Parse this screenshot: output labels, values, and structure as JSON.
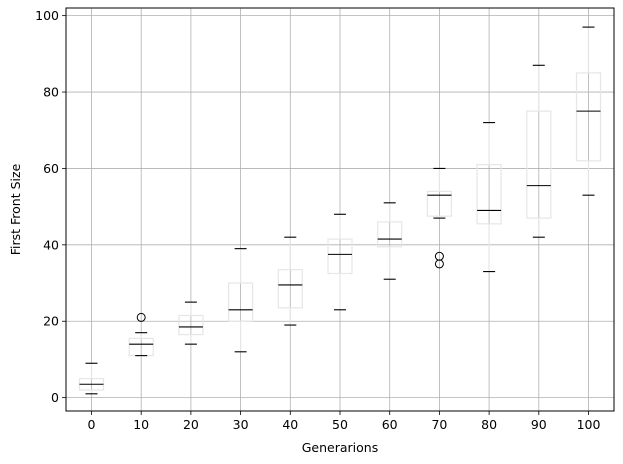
{
  "chart_data": {
    "type": "box",
    "xlabel": "Generarions",
    "ylabel": "First Front Size",
    "categories": [
      "0",
      "10",
      "20",
      "30",
      "40",
      "50",
      "60",
      "70",
      "80",
      "90",
      "100"
    ],
    "ylim": [
      -3.5,
      102
    ],
    "yticks": [
      0,
      20,
      40,
      60,
      80,
      100
    ],
    "grid": true,
    "boxes": [
      {
        "whisker_low": 1,
        "q1": 2,
        "median": 3.5,
        "q3": 5,
        "whisker_high": 9,
        "outliers": []
      },
      {
        "whisker_low": 11,
        "q1": 11,
        "median": 14,
        "q3": 15.5,
        "whisker_high": 17,
        "outliers": [
          21
        ]
      },
      {
        "whisker_low": 14,
        "q1": 16.5,
        "median": 18.5,
        "q3": 21.5,
        "whisker_high": 25,
        "outliers": []
      },
      {
        "whisker_low": 12,
        "q1": 20,
        "median": 23,
        "q3": 30,
        "whisker_high": 39,
        "outliers": []
      },
      {
        "whisker_low": 19,
        "q1": 23.5,
        "median": 29.5,
        "q3": 33.5,
        "whisker_high": 42,
        "outliers": []
      },
      {
        "whisker_low": 23,
        "q1": 32.5,
        "median": 37.5,
        "q3": 41.5,
        "whisker_high": 48,
        "outliers": []
      },
      {
        "whisker_low": 31,
        "q1": 39.5,
        "median": 41.5,
        "q3": 46,
        "whisker_high": 51,
        "outliers": []
      },
      {
        "whisker_low": 47,
        "q1": 47.5,
        "median": 53,
        "q3": 54,
        "whisker_high": 60,
        "outliers": [
          35,
          37
        ]
      },
      {
        "whisker_low": 33,
        "q1": 45.5,
        "median": 49,
        "q3": 61,
        "whisker_high": 72,
        "outliers": []
      },
      {
        "whisker_low": 42,
        "q1": 47,
        "median": 55.5,
        "q3": 75,
        "whisker_high": 87,
        "outliers": []
      },
      {
        "whisker_low": 53,
        "q1": 62,
        "median": 75,
        "q3": 85,
        "whisker_high": 97,
        "outliers": []
      }
    ],
    "colors": {
      "box": "#e6e6e6",
      "median": "#000000",
      "whisker_cap": "#000000",
      "grid": "#b0b0b0",
      "axes": "#000000"
    }
  }
}
